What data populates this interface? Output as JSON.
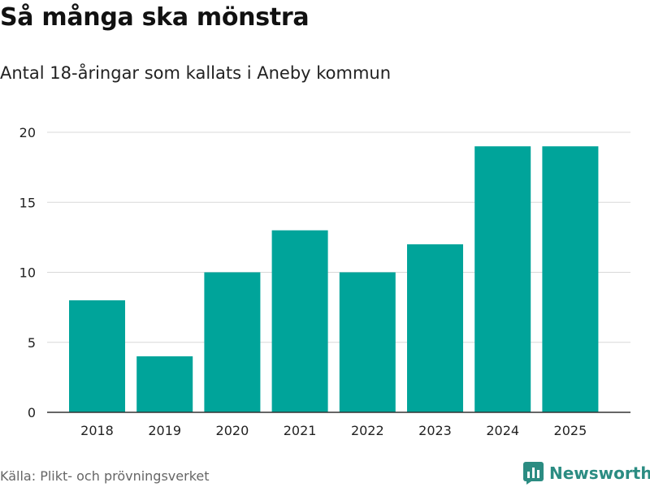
{
  "title": "Så många ska mönstra",
  "subtitle": "Antal 18-åringar som kallats i Aneby kommun",
  "source": "Källa: Plikt- och prövningsverket",
  "logo_text": "Newsworthy",
  "logo_icon": "bar-chart-icon",
  "colors": {
    "bar": "#00a49a",
    "grid": "#d9d9d9",
    "axis": "#333333",
    "brand": "#2b8c82"
  },
  "chart_data": {
    "type": "bar",
    "categories": [
      "2018",
      "2019",
      "2020",
      "2021",
      "2022",
      "2023",
      "2024",
      "2025"
    ],
    "values": [
      8,
      4,
      10,
      13,
      10,
      12,
      19,
      19
    ],
    "title": "Så många ska mönstra",
    "subtitle": "Antal 18-åringar som kallats i Aneby kommun",
    "xlabel": "",
    "ylabel": "",
    "ylim": [
      0,
      20
    ],
    "yticks": [
      0,
      5,
      10,
      15,
      20
    ],
    "grid": true,
    "legend": "none"
  }
}
